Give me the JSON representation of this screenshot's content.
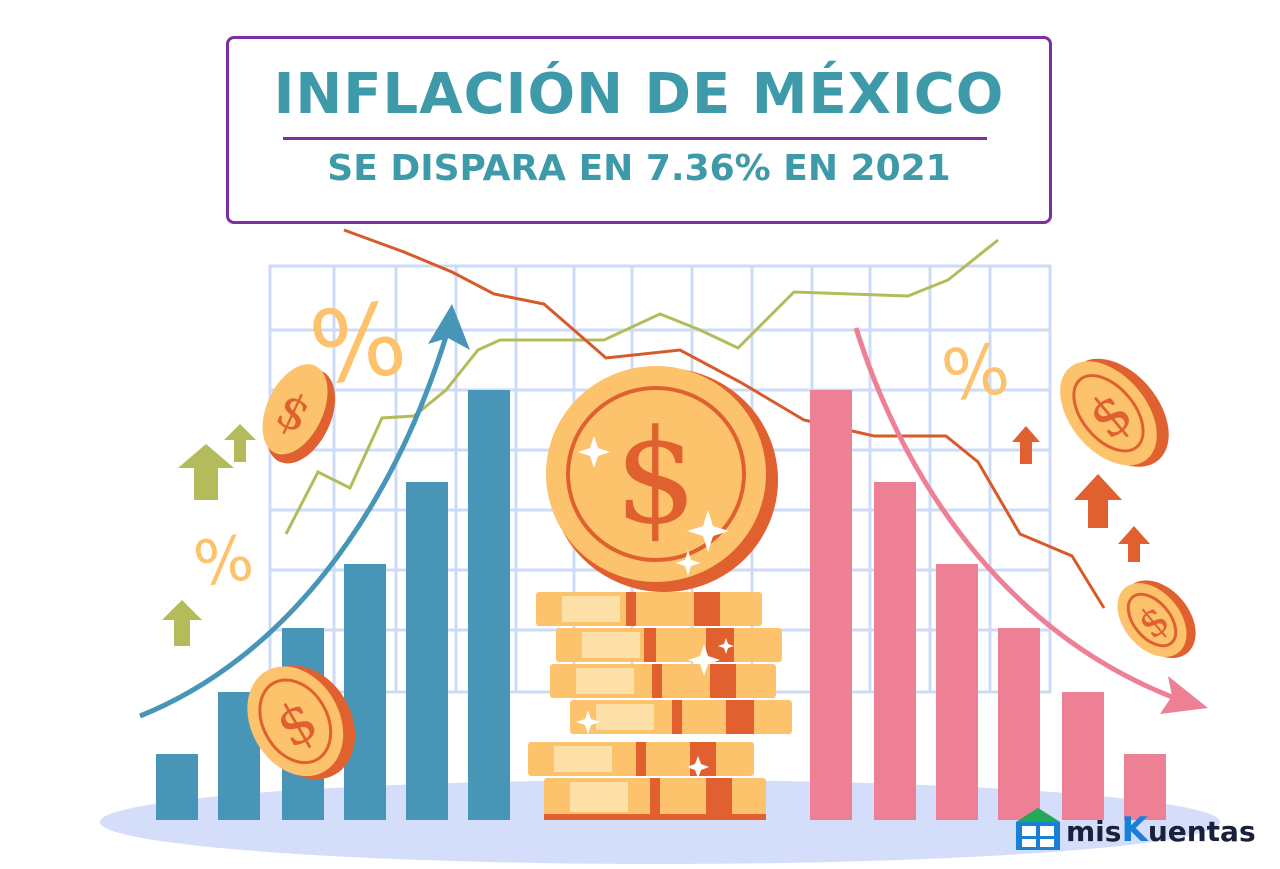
{
  "title": {
    "main": "INFLACIÓN DE MÉXICO",
    "subtitle": "SE DISPARA EN 7.36% EN 2021"
  },
  "decor": {
    "percent_sign": "%"
  },
  "brand": {
    "prefix": "mis",
    "k": "K",
    "suffix": "uentas"
  },
  "colors": {
    "title_text": "#3e9aa8",
    "frame": "#7b2fa0",
    "blue_bars": "#4796b8",
    "pink_bars": "#ee8096",
    "coin": "#fcc26c",
    "coin_dark": "#e0612f",
    "grid": "#cddbf7",
    "ground": "#d4ddfa",
    "arrow_green": "#b4bb5a",
    "arrow_orange": "#e0612f"
  }
}
